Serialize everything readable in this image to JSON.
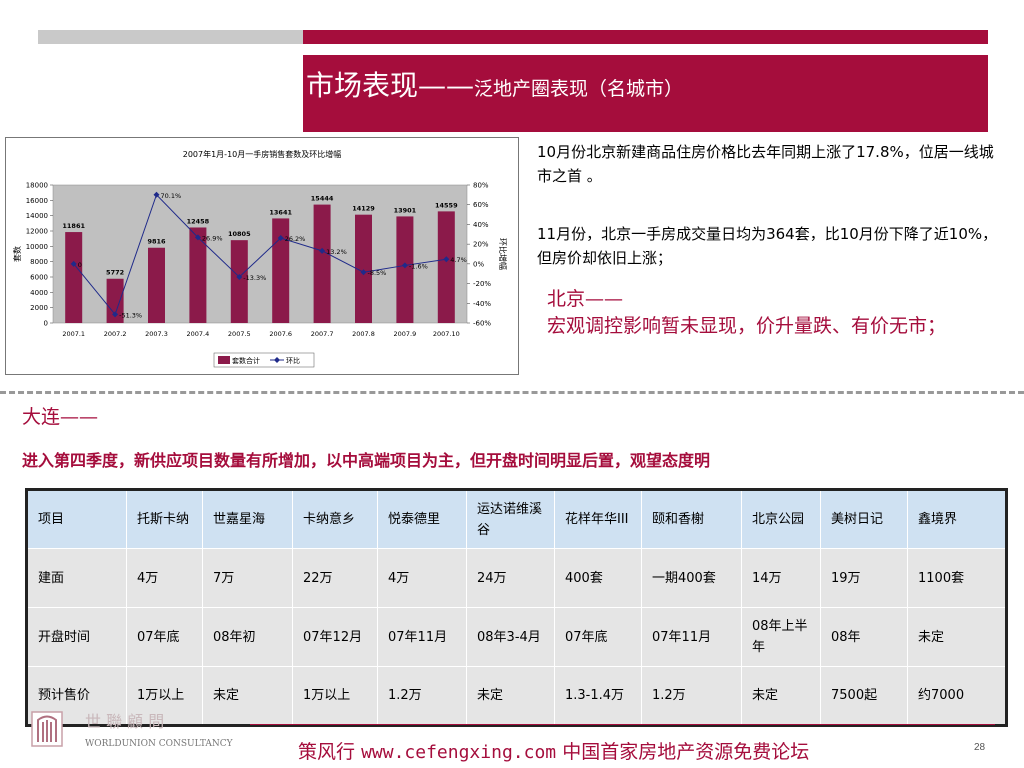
{
  "title": {
    "main": "市场表现——",
    "sub": "泛地产圈表现（名城市）"
  },
  "colors": {
    "accent": "#a50d3c",
    "bar": "#8b1a4a",
    "line": "#1f2a8a",
    "table_header": "#cfe1f2",
    "table_body": "#e5e5e5"
  },
  "chart_data": {
    "type": "bar",
    "title": "2007年1月-10月一手房销售套数及环比增幅",
    "categories": [
      "2007.1",
      "2007.2",
      "2007.3",
      "2007.4",
      "2007.5",
      "2007.6",
      "2007.7",
      "2007.8",
      "2007.9",
      "2007.10"
    ],
    "series": [
      {
        "name": "套数合计",
        "type": "bar",
        "axis": "left",
        "values": [
          11861,
          5772,
          9816,
          12458,
          10805,
          13641,
          15444,
          14129,
          13901,
          14559
        ]
      },
      {
        "name": "环比",
        "type": "line",
        "axis": "right",
        "values": [
          0,
          -51.3,
          70.1,
          26.9,
          -13.3,
          26.2,
          13.2,
          -8.5,
          -1.6,
          4.7
        ],
        "labels": [
          "0",
          "-51.3%",
          "70.1%",
          "26.9%",
          "-13.3%",
          "26.2%",
          "13.2%",
          "-8.5%",
          "-1.6%",
          "4.7%"
        ]
      }
    ],
    "ylabel": "套数",
    "ylabel_right": "环比增幅",
    "ylim": [
      0,
      18000
    ],
    "yticks": [
      "0",
      "2000",
      "4000",
      "6000",
      "8000",
      "10000",
      "12000",
      "14000",
      "16000",
      "18000"
    ],
    "ylim_right": [
      -60,
      80
    ],
    "yticks_right": [
      "-60%",
      "-40%",
      "-20%",
      "0%",
      "20%",
      "40%",
      "60%",
      "80%"
    ],
    "legend": [
      "套数合计",
      "环比"
    ],
    "legend_position": "bottom"
  },
  "beijing_text": {
    "p1": "10月份北京新建商品住房价格比去年同期上涨了17.8%，位居一线城市之首 。",
    "p2": "11月份，北京一手房成交量日均为364套，比10月份下降了近10%，但房价却依旧上涨；",
    "heading": "北京——",
    "body": "宏观调控影响暂未显现，价升量跌、有价无市；"
  },
  "dalian": {
    "heading": "大连——",
    "body": "进入第四季度，新供应项目数量有所增加，以中高端项目为主，但开盘时间明显后置，观望态度明"
  },
  "table": {
    "header": [
      "项目",
      "托斯卡纳",
      "世嘉星海",
      "卡纳意乡",
      "悦泰德里",
      "运达诺维溪谷",
      "花样年华III",
      "颐和香榭",
      "北京公园",
      "美树日记",
      "鑫境界"
    ],
    "rows": [
      [
        "建面",
        "4万",
        "7万",
        "22万",
        "4万",
        "24万",
        "400套",
        "一期400套",
        "14万",
        "19万",
        "1100套"
      ],
      [
        "开盘时间",
        "07年底",
        "08年初",
        "07年12月",
        "07年11月",
        "08年3-4月",
        "07年底",
        "07年11月",
        "08年上半年",
        "08年",
        "未定"
      ],
      [
        "预计售价",
        "1万以上",
        "未定",
        "1万以上",
        "1.2万",
        "未定",
        "1.3-1.4万",
        "1.2万",
        "未定",
        "7500起",
        "约7000"
      ]
    ]
  },
  "logo": {
    "cn": "世 聯 顧 問",
    "en": "WORLDUNION CONSULTANCY"
  },
  "footer": {
    "name": "策风行",
    "url": "www.cefengxing.com",
    "slogan": "中国首家房地产资源免费论坛"
  },
  "page_number": "28"
}
